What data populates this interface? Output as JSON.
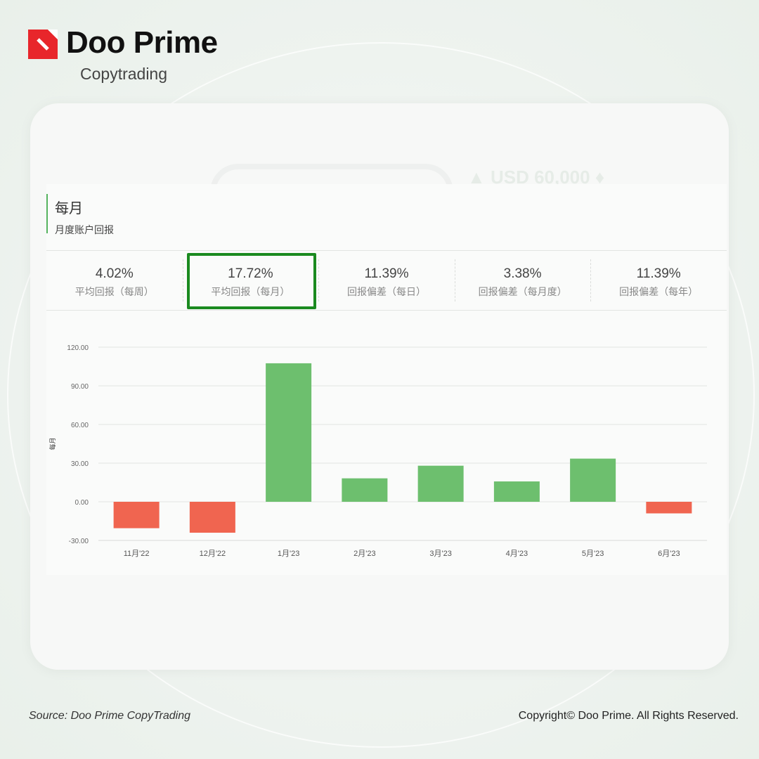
{
  "brand": {
    "name": "Doo Prime",
    "sub": "Copytrading",
    "accent": "#e8262b"
  },
  "ghost": {
    "text": "▲ USD 60,000 ♦"
  },
  "panel": {
    "title": "每月",
    "subtitle": "月度账户回报"
  },
  "stats": [
    {
      "value": "4.02%",
      "label": "平均回报（每周）"
    },
    {
      "value": "17.72%",
      "label": "平均回报（每月）"
    },
    {
      "value": "11.39%",
      "label": "回报偏差（每日）"
    },
    {
      "value": "3.38%",
      "label": "回报偏差（每月度）"
    },
    {
      "value": "11.39%",
      "label": "回报偏差（每年）"
    }
  ],
  "chart_data": {
    "type": "bar",
    "categories": [
      "11月'22",
      "12月'22",
      "1月'23",
      "2月'23",
      "3月'23",
      "4月'23",
      "5月'23",
      "6月'23"
    ],
    "values": [
      -20.5,
      -24.0,
      107.5,
      18.2,
      28.0,
      15.8,
      33.5,
      -9.0
    ],
    "ylabel": "每月",
    "ylim": [
      -30,
      120
    ],
    "yticks": [
      "120.00",
      "90.00",
      "60.00",
      "30.00",
      "0.00",
      "-30.00"
    ],
    "positive_color": "#6dbf6e",
    "negative_color": "#f06550",
    "grid": true
  },
  "footer": {
    "source": "Source: Doo Prime CopyTrading",
    "copyright": "Copyright© Doo Prime. All Rights Reserved."
  }
}
